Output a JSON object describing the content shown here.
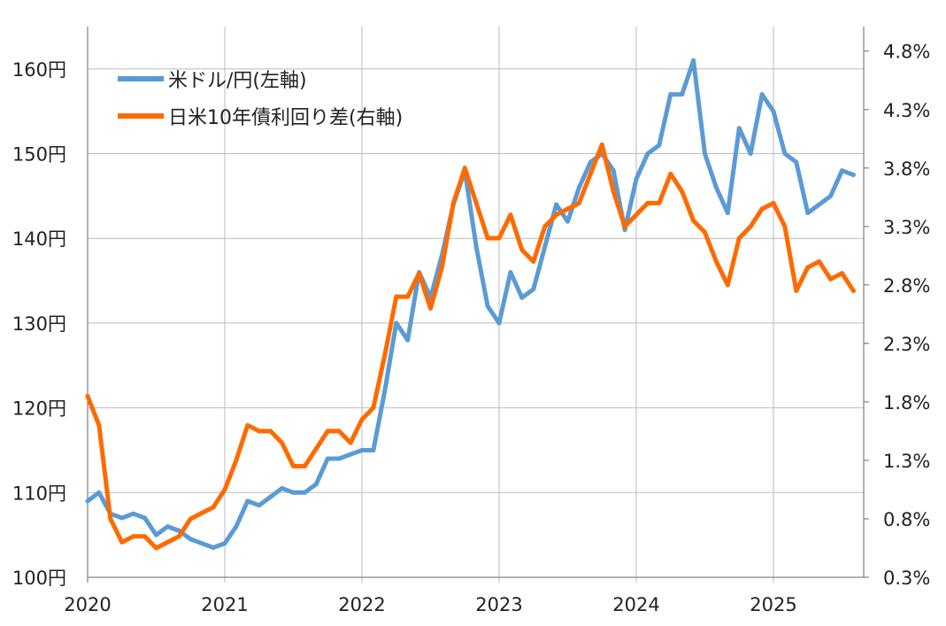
{
  "chart_data": {
    "type": "line",
    "title": "",
    "legend_position": "top-left",
    "x_ticks": [
      "2020",
      "2021",
      "2022",
      "2023",
      "2024",
      "2025"
    ],
    "xlim": [
      2020.0,
      2025.75
    ],
    "y_left": {
      "label": "",
      "ticks": [
        "100円",
        "110円",
        "120円",
        "130円",
        "140円",
        "150円",
        "160円"
      ],
      "tick_values": [
        100,
        110,
        120,
        130,
        140,
        150,
        160
      ],
      "ylim": [
        100,
        165
      ]
    },
    "y_right": {
      "label": "",
      "ticks": [
        "0.3%",
        "0.8%",
        "1.3%",
        "1.8%",
        "2.3%",
        "2.8%",
        "3.3%",
        "3.8%",
        "4.3%",
        "4.8%"
      ],
      "tick_values": [
        0.3,
        0.8,
        1.3,
        1.8,
        2.3,
        2.8,
        3.3,
        3.8,
        4.3,
        4.8
      ],
      "ylim": [
        0.3,
        5.01
      ]
    },
    "grid": "horizontal",
    "series": [
      {
        "name": "米ドル/円(左軸)",
        "axis": "left",
        "color": "#5B9BD5",
        "start": 2020.0,
        "step_months": 1,
        "values": [
          109,
          110,
          107.5,
          107,
          107.5,
          107,
          105,
          106,
          105.5,
          104.5,
          104,
          103.5,
          104,
          106,
          109,
          108.5,
          109.5,
          110.5,
          110,
          110,
          111,
          114,
          114,
          114.5,
          115,
          115,
          122,
          130,
          128,
          136,
          133,
          138,
          144,
          148,
          139,
          132,
          130,
          136,
          133,
          134,
          139,
          144,
          142,
          146,
          149,
          150,
          148,
          141,
          147,
          150,
          151,
          157,
          157,
          161,
          150,
          146,
          143,
          153,
          150,
          157,
          155,
          150,
          149,
          143,
          144,
          145,
          148,
          147.5
        ]
      },
      {
        "name": "日米10年債利回り差(右軸)",
        "axis": "right",
        "color": "#FF6A00",
        "start": 2020.0,
        "step_months": 1,
        "values": [
          1.85,
          1.6,
          0.8,
          0.6,
          0.65,
          0.65,
          0.55,
          0.6,
          0.65,
          0.8,
          0.85,
          0.9,
          1.05,
          1.3,
          1.6,
          1.55,
          1.55,
          1.45,
          1.25,
          1.25,
          1.4,
          1.55,
          1.55,
          1.45,
          1.65,
          1.75,
          2.2,
          2.7,
          2.7,
          2.9,
          2.6,
          2.95,
          3.5,
          3.8,
          3.5,
          3.2,
          3.2,
          3.4,
          3.1,
          3.0,
          3.3,
          3.4,
          3.45,
          3.5,
          3.75,
          4.0,
          3.6,
          3.3,
          3.4,
          3.5,
          3.5,
          3.75,
          3.6,
          3.35,
          3.25,
          3.0,
          2.8,
          3.2,
          3.3,
          3.45,
          3.5,
          3.3,
          2.75,
          2.95,
          3.0,
          2.85,
          2.9,
          2.75
        ]
      }
    ]
  }
}
